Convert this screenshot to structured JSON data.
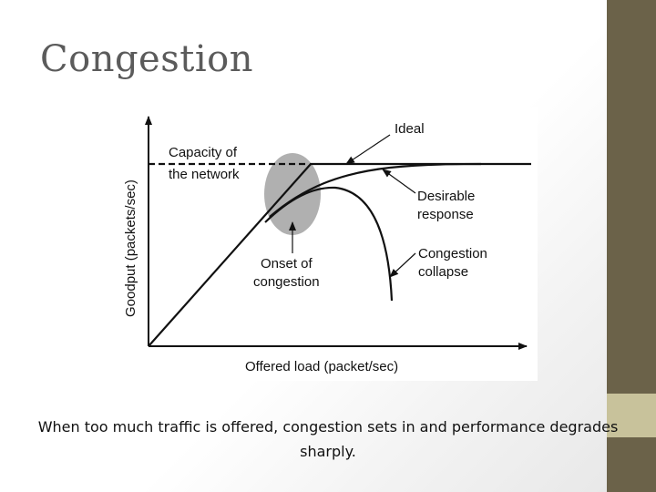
{
  "slide": {
    "title": "Congestion",
    "caption": "When too much traffic is offered, congestion sets in and performance degrades sharply."
  },
  "figure": {
    "y_axis_label": "Goodput (packets/sec)",
    "x_axis_label": "Offered load (packet/sec)",
    "capacity_label_line1": "Capacity of",
    "capacity_label_line2": "the network",
    "ideal_label": "Ideal",
    "desirable_label_line1": "Desirable",
    "desirable_label_line2": "response",
    "collapse_label_line1": "Congestion",
    "collapse_label_line2": "collapse",
    "onset_label_line1": "Onset of",
    "onset_label_line2": "congestion"
  },
  "colors": {
    "side_bar": "#6b6249",
    "side_accent": "#c8c29b",
    "title_text": "#5b5b5b",
    "onset_region": "#b0b0b0"
  }
}
